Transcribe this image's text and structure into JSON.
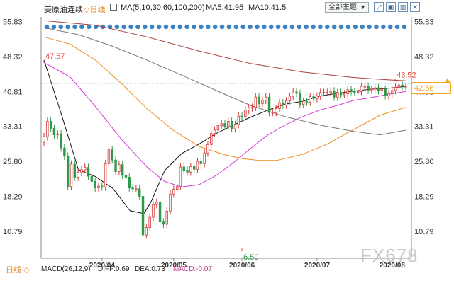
{
  "header": {
    "title": "美原油连续",
    "period": "◇日线",
    "ma_label": "MA(5,10,30,60,100,200)",
    "ma5": "MA5:41.95",
    "ma10": "MA10:41.5",
    "topic_select": "全部主题",
    "tool_icons": [
      "expand-icon",
      "fullscreen-icon",
      "chart-icon",
      "close-icon"
    ]
  },
  "footer": {
    "period": "日线 ◇",
    "macd": "MACD(26,12,9)",
    "dif": "DIFF:0.69",
    "dea": "DEA:0.73",
    "macd_value": "MACD:-0.07"
  },
  "watermark": "FX678",
  "current_price": "42.56",
  "colors": {
    "up": "#d73a3a",
    "down": "#2f9a4a",
    "ma5": "#111111",
    "ma10": "#111111",
    "ma30": "#d63ad6",
    "ma60": "#f08c1e",
    "ma100": "#777777",
    "ma200": "#a84040",
    "price_line": "#2a8fd6",
    "highlight": "#e8463a"
  },
  "chart_data": {
    "type": "line",
    "subtype": "candlestick",
    "y_ticks": [
      "55.83",
      "48.32",
      "40.81",
      "33.31",
      "25.80",
      "18.29",
      "10.79"
    ],
    "ylim": [
      5.0,
      56.8
    ],
    "x_labels": [
      "2020/04",
      "2020/05",
      "2020/06",
      "2020/07",
      "2020/08"
    ],
    "x": [
      "2020-03-09",
      "2020-03-10",
      "2020-03-11",
      "2020-03-12",
      "2020-03-13",
      "2020-03-16",
      "2020-03-17",
      "2020-03-18",
      "2020-03-19",
      "2020-03-20",
      "2020-03-23",
      "2020-03-24",
      "2020-03-25",
      "2020-03-26",
      "2020-03-27",
      "2020-03-30",
      "2020-03-31",
      "2020-04-01",
      "2020-04-02",
      "2020-04-03",
      "2020-04-06",
      "2020-04-07",
      "2020-04-08",
      "2020-04-09",
      "2020-04-13",
      "2020-04-14",
      "2020-04-15",
      "2020-04-16",
      "2020-04-17",
      "2020-04-20",
      "2020-04-21",
      "2020-04-22",
      "2020-04-23",
      "2020-04-24",
      "2020-04-27",
      "2020-04-28",
      "2020-04-29",
      "2020-04-30",
      "2020-05-01",
      "2020-05-04",
      "2020-05-05",
      "2020-05-06",
      "2020-05-07",
      "2020-05-08",
      "2020-05-11",
      "2020-05-12",
      "2020-05-13",
      "2020-05-14",
      "2020-05-15",
      "2020-05-18",
      "2020-05-19",
      "2020-05-20",
      "2020-05-21",
      "2020-05-22",
      "2020-05-26",
      "2020-05-27",
      "2020-05-28",
      "2020-05-29",
      "2020-06-01",
      "2020-06-02",
      "2020-06-03",
      "2020-06-04",
      "2020-06-05",
      "2020-06-08",
      "2020-06-09",
      "2020-06-10",
      "2020-06-11",
      "2020-06-12",
      "2020-06-15",
      "2020-06-16",
      "2020-06-17",
      "2020-06-18",
      "2020-06-19",
      "2020-06-22",
      "2020-06-23",
      "2020-06-24",
      "2020-06-25",
      "2020-06-26",
      "2020-06-29",
      "2020-06-30",
      "2020-07-01",
      "2020-07-02",
      "2020-07-06",
      "2020-07-07",
      "2020-07-08",
      "2020-07-09",
      "2020-07-10",
      "2020-07-13",
      "2020-07-14",
      "2020-07-15",
      "2020-07-16",
      "2020-07-17",
      "2020-07-20",
      "2020-07-21",
      "2020-07-22",
      "2020-07-23",
      "2020-07-24",
      "2020-07-27",
      "2020-07-28",
      "2020-07-29",
      "2020-07-30",
      "2020-07-31",
      "2020-08-03",
      "2020-08-04",
      "2020-08-05",
      "2020-08-06",
      "2020-08-07"
    ],
    "close": [
      31.1,
      34.4,
      32.9,
      31.5,
      31.7,
      28.7,
      26.9,
      20.4,
      25.2,
      22.4,
      23.4,
      24.0,
      24.5,
      22.6,
      21.5,
      20.1,
      20.5,
      20.3,
      25.3,
      28.3,
      26.1,
      23.6,
      25.1,
      22.8,
      22.4,
      20.1,
      19.9,
      19.9,
      18.3,
      10.0,
      11.6,
      13.8,
      16.5,
      17.0,
      12.8,
      12.3,
      15.1,
      18.8,
      19.8,
      20.4,
      24.6,
      23.9,
      23.5,
      24.7,
      24.1,
      25.8,
      25.3,
      27.6,
      29.4,
      31.8,
      32.5,
      33.5,
      33.9,
      33.3,
      34.4,
      32.8,
      33.7,
      35.5,
      35.4,
      36.8,
      37.3,
      37.4,
      39.6,
      38.2,
      38.9,
      39.6,
      36.3,
      36.3,
      37.1,
      38.4,
      37.9,
      38.8,
      39.8,
      40.7,
      40.4,
      38.0,
      38.7,
      38.5,
      39.7,
      39.3,
      39.8,
      40.6,
      40.6,
      40.6,
      40.9,
      39.6,
      40.6,
      40.1,
      40.3,
      41.2,
      40.8,
      40.6,
      40.8,
      41.9,
      41.9,
      41.1,
      41.3,
      41.6,
      41.0,
      41.3,
      39.9,
      40.3,
      41.0,
      41.7,
      42.2,
      41.9,
      41.9
    ],
    "ma_lines": [
      {
        "name": "MA5",
        "values": [
          [
            0,
            47.6
          ],
          [
            10,
            36.0
          ],
          [
            20,
            24.0
          ],
          [
            30,
            22.5
          ],
          [
            40,
            20.0
          ],
          [
            50,
            15.2
          ],
          [
            58,
            14.6
          ],
          [
            62,
            17.0
          ],
          [
            70,
            23.8
          ],
          [
            80,
            27.5
          ],
          [
            90,
            29.5
          ],
          [
            100,
            31.8
          ],
          [
            110,
            33.6
          ],
          [
            120,
            35.3
          ],
          [
            130,
            36.8
          ],
          [
            140,
            38.1
          ],
          [
            150,
            38.7
          ],
          [
            160,
            39.8
          ],
          [
            170,
            40.4
          ],
          [
            180,
            40.9
          ],
          [
            190,
            41.3
          ],
          [
            200,
            41.5
          ],
          [
            210,
            41.9
          ]
        ]
      },
      {
        "name": "MA30",
        "values": [
          [
            0,
            47.0
          ],
          [
            15,
            44.0
          ],
          [
            30,
            37.5
          ],
          [
            45,
            30.5
          ],
          [
            60,
            24.5
          ],
          [
            70,
            21.5
          ],
          [
            80,
            20.3
          ],
          [
            90,
            20.8
          ],
          [
            100,
            22.8
          ],
          [
            110,
            25.5
          ],
          [
            120,
            28.6
          ],
          [
            130,
            31.5
          ],
          [
            140,
            33.6
          ],
          [
            150,
            35.4
          ],
          [
            160,
            36.8
          ],
          [
            170,
            37.8
          ],
          [
            180,
            38.9
          ],
          [
            190,
            39.5
          ],
          [
            200,
            40.2
          ],
          [
            210,
            40.8
          ]
        ]
      },
      {
        "name": "MA60",
        "values": [
          [
            0,
            52.5
          ],
          [
            15,
            51.0
          ],
          [
            30,
            47.5
          ],
          [
            45,
            42.5
          ],
          [
            60,
            37.0
          ],
          [
            75,
            32.5
          ],
          [
            90,
            29.0
          ],
          [
            105,
            27.2
          ],
          [
            115,
            26.4
          ],
          [
            125,
            26.0
          ],
          [
            135,
            26.0
          ],
          [
            150,
            27.3
          ],
          [
            165,
            29.6
          ],
          [
            180,
            32.7
          ],
          [
            195,
            35.7
          ],
          [
            210,
            37.4
          ]
        ]
      },
      {
        "name": "MA100",
        "values": [
          [
            0,
            54.5
          ],
          [
            20,
            53.0
          ],
          [
            40,
            50.5
          ],
          [
            60,
            47.5
          ],
          [
            80,
            44.3
          ],
          [
            100,
            41.0
          ],
          [
            120,
            37.8
          ],
          [
            140,
            35.4
          ],
          [
            160,
            33.6
          ],
          [
            180,
            32.2
          ],
          [
            195,
            31.5
          ],
          [
            210,
            32.5
          ]
        ]
      },
      {
        "name": "MA200",
        "values": [
          [
            0,
            56.0
          ],
          [
            30,
            55.0
          ],
          [
            60,
            52.5
          ],
          [
            90,
            49.5
          ],
          [
            120,
            46.8
          ],
          [
            150,
            45.0
          ],
          [
            180,
            43.8
          ],
          [
            200,
            43.3
          ],
          [
            210,
            43.1
          ]
        ]
      }
    ],
    "annotations": [
      {
        "label": "47.57",
        "value": 47.57,
        "index": 0,
        "kind": "high"
      },
      {
        "label": "43.52",
        "value": 43.52,
        "index": 208,
        "kind": "high"
      },
      {
        "label": "6.50",
        "value": 6.5,
        "index": 58,
        "kind": "low"
      }
    ],
    "last_price": 42.56,
    "grid": false,
    "dots_row_count": 52
  }
}
